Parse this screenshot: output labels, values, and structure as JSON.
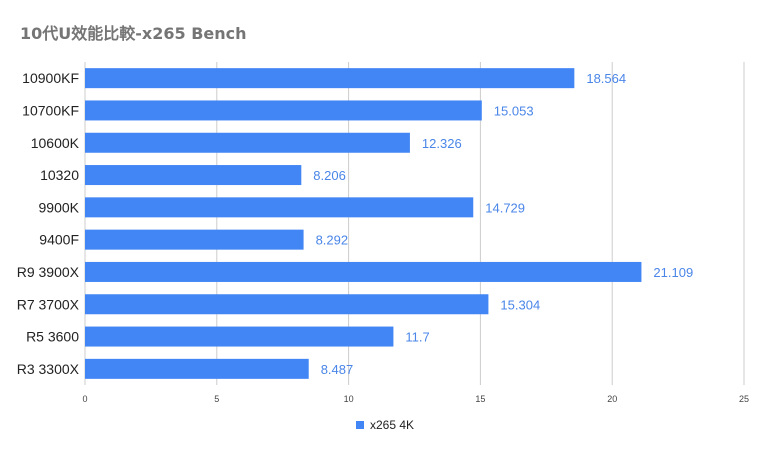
{
  "chart_data": {
    "type": "bar",
    "orientation": "horizontal",
    "title": "10代U效能比較-x265 Bench",
    "categories": [
      "10900KF",
      "10700KF",
      "10600K",
      "10320",
      "9900K",
      "9400F",
      "R9 3900X",
      "R7 3700X",
      "R5 3600",
      "R3 3300X"
    ],
    "series": [
      {
        "name": "x265 4K",
        "values": [
          18.564,
          15.053,
          12.326,
          8.206,
          14.729,
          8.292,
          21.109,
          15.304,
          11.7,
          8.487
        ],
        "labels": [
          "18.564",
          "15.053",
          "12.326",
          "8.206",
          "14.729",
          "8.292",
          "21.109",
          "15.304",
          "11.7",
          "8.487"
        ]
      }
    ],
    "xlim": [
      0,
      25
    ],
    "xticks": [
      0,
      5,
      10,
      15,
      20,
      25
    ],
    "xtick_labels": [
      "0",
      "5",
      "10",
      "15",
      "20",
      "25"
    ],
    "xlabel": "",
    "ylabel": "",
    "grid": true,
    "legend_position": "bottom",
    "colors": {
      "bar": "#4285f4",
      "data_label": "#4a86e8",
      "grid": "#cccccc",
      "title": "#757575"
    }
  }
}
